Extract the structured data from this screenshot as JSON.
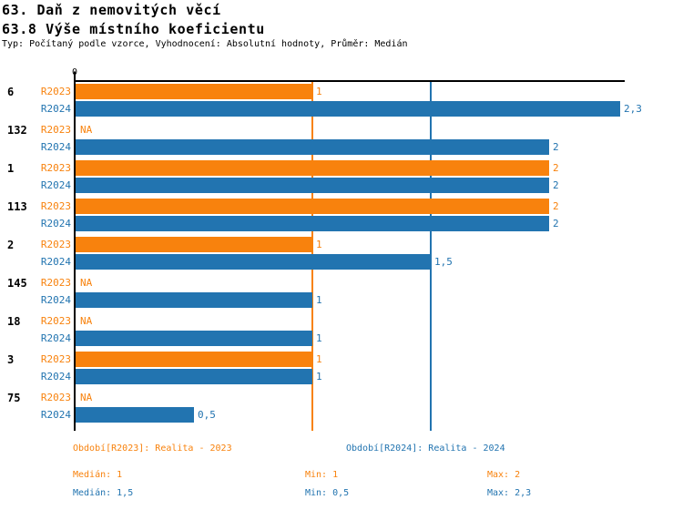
{
  "header": {
    "title_line1": "63. Daň z nemovitých věcí",
    "title_line2": "63.8 Výše místního koeficientu",
    "subtitle": "Typ: Počítaný podle vzorce, Vyhodnocení: Absolutní hodnoty, Průměr: Medián"
  },
  "chart_data": {
    "type": "bar",
    "orientation": "horizontal",
    "title": "63.8 Výše místního koeficientu",
    "categories": [
      "6",
      "132",
      "1",
      "113",
      "2",
      "145",
      "18",
      "3",
      "75"
    ],
    "series": [
      {
        "name": "R2023",
        "legend": "Období[R2023]: Realita - 2023",
        "color": "#f8820d",
        "values": [
          1,
          null,
          2,
          2,
          1,
          null,
          null,
          1,
          null
        ],
        "value_labels": [
          "1",
          "NA",
          "2",
          "2",
          "1",
          "NA",
          "NA",
          "1",
          "NA"
        ]
      },
      {
        "name": "R2024",
        "legend": "Období[R2024]: Realita - 2024",
        "color": "#2274b0",
        "values": [
          2.3,
          2,
          2,
          2,
          1.5,
          1,
          1,
          1,
          0.5
        ],
        "value_labels": [
          "2,3",
          "2",
          "2",
          "2",
          "1,5",
          "1",
          "1",
          "1",
          "0,5"
        ]
      }
    ],
    "xlim": [
      0,
      2.32
    ],
    "x_zero_label": "0",
    "na_label": "NA",
    "gridlines": [
      {
        "name": "median-r2023",
        "value": 1,
        "color": "#f8820d"
      },
      {
        "name": "median-r2024",
        "value": 1.5,
        "color": "#2274b0"
      }
    ],
    "stats": {
      "r2023": {
        "median": 1,
        "min": 1,
        "max": 2
      },
      "r2024": {
        "median": 1.5,
        "min": 0.5,
        "max": 2.3
      }
    }
  },
  "legend": {
    "period_r2023": "Období[R2023]: Realita - 2023",
    "period_r2024": "Období[R2024]: Realita - 2024",
    "median_r2023": "Medián: 1",
    "min_r2023": "Min: 1",
    "max_r2023": "Max: 2",
    "median_r2024": "Medián: 1,5",
    "min_r2024": "Min: 0,5",
    "max_r2024": "Max: 2,3"
  },
  "colors": {
    "r2023": "#f8820d",
    "r2024": "#2274b0",
    "axis": "#000000",
    "background": "#ffffff"
  }
}
